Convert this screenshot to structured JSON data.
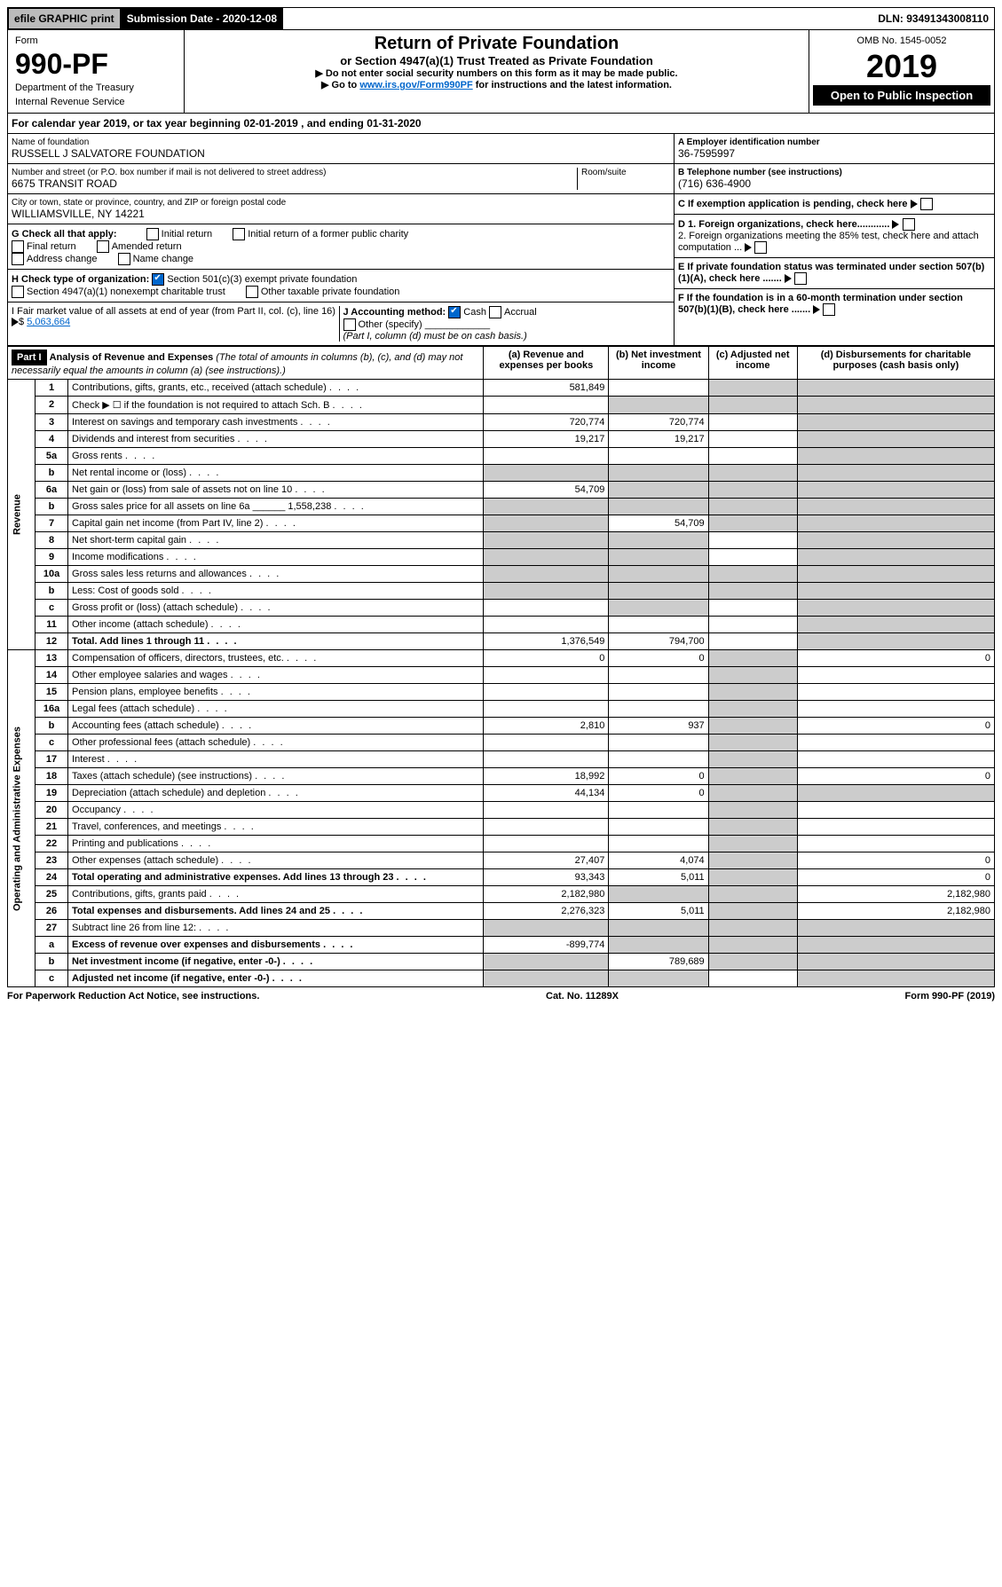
{
  "topbar": {
    "efile": "efile GRAPHIC print",
    "submission": "Submission Date - 2020-12-08",
    "dln": "DLN: 93491343008110"
  },
  "form": {
    "label": "Form",
    "number": "990-PF",
    "dept": "Department of the Treasury",
    "irs": "Internal Revenue Service",
    "title": "Return of Private Foundation",
    "subtitle": "or Section 4947(a)(1) Trust Treated as Private Foundation",
    "note1": "▶ Do not enter social security numbers on this form as it may be made public.",
    "note2_pre": "▶ Go to ",
    "note2_link": "www.irs.gov/Form990PF",
    "note2_post": " for instructions and the latest information.",
    "omb": "OMB No. 1545-0052",
    "year": "2019",
    "inspect": "Open to Public Inspection"
  },
  "cal": {
    "text_pre": "For calendar year 2019, or tax year beginning ",
    "begin": "02-01-2019",
    "mid": " , and ending ",
    "end": "01-31-2020"
  },
  "id": {
    "name_label": "Name of foundation",
    "name": "RUSSELL J SALVATORE FOUNDATION",
    "addr_label": "Number and street (or P.O. box number if mail is not delivered to street address)",
    "room_label": "Room/suite",
    "addr": "6675 TRANSIT ROAD",
    "city_label": "City or town, state or province, country, and ZIP or foreign postal code",
    "city": "WILLIAMSVILLE, NY  14221",
    "ein_label": "A Employer identification number",
    "ein": "36-7595997",
    "tel_label": "B Telephone number (see instructions)",
    "tel": "(716) 636-4900",
    "c_label": "C If exemption application is pending, check here",
    "d1": "D 1. Foreign organizations, check here............",
    "d2": "2. Foreign organizations meeting the 85% test, check here and attach computation ...",
    "e": "E If private foundation status was terminated under section 507(b)(1)(A), check here .......",
    "f": "F If the foundation is in a 60-month termination under section 507(b)(1)(B), check here ......."
  },
  "g": {
    "label": "G Check all that apply:",
    "opts": [
      "Initial return",
      "Initial return of a former public charity",
      "Final return",
      "Amended return",
      "Address change",
      "Name change"
    ]
  },
  "h": {
    "label": "H Check type of organization:",
    "opt1": "Section 501(c)(3) exempt private foundation",
    "opt2": "Section 4947(a)(1) nonexempt charitable trust",
    "opt3": "Other taxable private foundation"
  },
  "i": {
    "label": "I Fair market value of all assets at end of year (from Part II, col. (c), line 16)",
    "val": "5,063,664"
  },
  "j": {
    "label": "J Accounting method:",
    "cash": "Cash",
    "accrual": "Accrual",
    "other": "Other (specify)",
    "note": "(Part I, column (d) must be on cash basis.)"
  },
  "part1": {
    "hdr": "Part I",
    "title": "Analysis of Revenue and Expenses",
    "sub": "(The total of amounts in columns (b), (c), and (d) may not necessarily equal the amounts in column (a) (see instructions).)",
    "cols": {
      "a": "(a) Revenue and expenses per books",
      "b": "(b) Net investment income",
      "c": "(c) Adjusted net income",
      "d": "(d) Disbursements for charitable purposes (cash basis only)"
    }
  },
  "revenue_label": "Revenue",
  "expenses_label": "Operating and Administrative Expenses",
  "rows": [
    {
      "n": "1",
      "d": "Contributions, gifts, grants, etc., received (attach schedule)",
      "a": "581,849",
      "b": "",
      "c": "shade",
      "dcol": "shade"
    },
    {
      "n": "2",
      "d": "Check ▶ ☐ if the foundation is not required to attach Sch. B",
      "a": "",
      "b": "shade",
      "c": "shade",
      "dcol": "shade"
    },
    {
      "n": "3",
      "d": "Interest on savings and temporary cash investments",
      "a": "720,774",
      "b": "720,774",
      "c": "",
      "dcol": "shade"
    },
    {
      "n": "4",
      "d": "Dividends and interest from securities",
      "a": "19,217",
      "b": "19,217",
      "c": "",
      "dcol": "shade"
    },
    {
      "n": "5a",
      "d": "Gross rents",
      "a": "",
      "b": "",
      "c": "",
      "dcol": "shade"
    },
    {
      "n": "b",
      "d": "Net rental income or (loss)",
      "a": "shade",
      "b": "shade",
      "c": "shade",
      "dcol": "shade"
    },
    {
      "n": "6a",
      "d": "Net gain or (loss) from sale of assets not on line 10",
      "a": "54,709",
      "b": "shade",
      "c": "shade",
      "dcol": "shade"
    },
    {
      "n": "b",
      "d": "Gross sales price for all assets on line 6a ______ 1,558,238",
      "a": "shade",
      "b": "shade",
      "c": "shade",
      "dcol": "shade"
    },
    {
      "n": "7",
      "d": "Capital gain net income (from Part IV, line 2)",
      "a": "shade",
      "b": "54,709",
      "c": "shade",
      "dcol": "shade"
    },
    {
      "n": "8",
      "d": "Net short-term capital gain",
      "a": "shade",
      "b": "shade",
      "c": "",
      "dcol": "shade"
    },
    {
      "n": "9",
      "d": "Income modifications",
      "a": "shade",
      "b": "shade",
      "c": "",
      "dcol": "shade"
    },
    {
      "n": "10a",
      "d": "Gross sales less returns and allowances",
      "a": "shade",
      "b": "shade",
      "c": "shade",
      "dcol": "shade"
    },
    {
      "n": "b",
      "d": "Less: Cost of goods sold",
      "a": "shade",
      "b": "shade",
      "c": "shade",
      "dcol": "shade"
    },
    {
      "n": "c",
      "d": "Gross profit or (loss) (attach schedule)",
      "a": "",
      "b": "shade",
      "c": "",
      "dcol": "shade"
    },
    {
      "n": "11",
      "d": "Other income (attach schedule)",
      "a": "",
      "b": "",
      "c": "",
      "dcol": "shade"
    },
    {
      "n": "12",
      "d": "Total. Add lines 1 through 11",
      "a": "1,376,549",
      "b": "794,700",
      "c": "",
      "dcol": "shade",
      "bold": true
    },
    {
      "n": "13",
      "d": "Compensation of officers, directors, trustees, etc.",
      "a": "0",
      "b": "0",
      "c": "shade",
      "dcol": "0"
    },
    {
      "n": "14",
      "d": "Other employee salaries and wages",
      "a": "",
      "b": "",
      "c": "shade",
      "dcol": ""
    },
    {
      "n": "15",
      "d": "Pension plans, employee benefits",
      "a": "",
      "b": "",
      "c": "shade",
      "dcol": ""
    },
    {
      "n": "16a",
      "d": "Legal fees (attach schedule)",
      "a": "",
      "b": "",
      "c": "shade",
      "dcol": ""
    },
    {
      "n": "b",
      "d": "Accounting fees (attach schedule)",
      "a": "2,810",
      "b": "937",
      "c": "shade",
      "dcol": "0"
    },
    {
      "n": "c",
      "d": "Other professional fees (attach schedule)",
      "a": "",
      "b": "",
      "c": "shade",
      "dcol": ""
    },
    {
      "n": "17",
      "d": "Interest",
      "a": "",
      "b": "",
      "c": "shade",
      "dcol": ""
    },
    {
      "n": "18",
      "d": "Taxes (attach schedule) (see instructions)",
      "a": "18,992",
      "b": "0",
      "c": "shade",
      "dcol": "0"
    },
    {
      "n": "19",
      "d": "Depreciation (attach schedule) and depletion",
      "a": "44,134",
      "b": "0",
      "c": "shade",
      "dcol": "shade"
    },
    {
      "n": "20",
      "d": "Occupancy",
      "a": "",
      "b": "",
      "c": "shade",
      "dcol": ""
    },
    {
      "n": "21",
      "d": "Travel, conferences, and meetings",
      "a": "",
      "b": "",
      "c": "shade",
      "dcol": ""
    },
    {
      "n": "22",
      "d": "Printing and publications",
      "a": "",
      "b": "",
      "c": "shade",
      "dcol": ""
    },
    {
      "n": "23",
      "d": "Other expenses (attach schedule)",
      "a": "27,407",
      "b": "4,074",
      "c": "shade",
      "dcol": "0"
    },
    {
      "n": "24",
      "d": "Total operating and administrative expenses. Add lines 13 through 23",
      "a": "93,343",
      "b": "5,011",
      "c": "shade",
      "dcol": "0",
      "bold": true
    },
    {
      "n": "25",
      "d": "Contributions, gifts, grants paid",
      "a": "2,182,980",
      "b": "shade",
      "c": "shade",
      "dcol": "2,182,980"
    },
    {
      "n": "26",
      "d": "Total expenses and disbursements. Add lines 24 and 25",
      "a": "2,276,323",
      "b": "5,011",
      "c": "shade",
      "dcol": "2,182,980",
      "bold": true
    },
    {
      "n": "27",
      "d": "Subtract line 26 from line 12:",
      "a": "shade",
      "b": "shade",
      "c": "shade",
      "dcol": "shade"
    },
    {
      "n": "a",
      "d": "Excess of revenue over expenses and disbursements",
      "a": "-899,774",
      "b": "shade",
      "c": "shade",
      "dcol": "shade",
      "bold": true
    },
    {
      "n": "b",
      "d": "Net investment income (if negative, enter -0-)",
      "a": "shade",
      "b": "789,689",
      "c": "shade",
      "dcol": "shade",
      "bold": true
    },
    {
      "n": "c",
      "d": "Adjusted net income (if negative, enter -0-)",
      "a": "shade",
      "b": "shade",
      "c": "",
      "dcol": "shade",
      "bold": true
    }
  ],
  "footer": {
    "left": "For Paperwork Reduction Act Notice, see instructions.",
    "mid": "Cat. No. 11289X",
    "right": "Form 990-PF (2019)"
  }
}
